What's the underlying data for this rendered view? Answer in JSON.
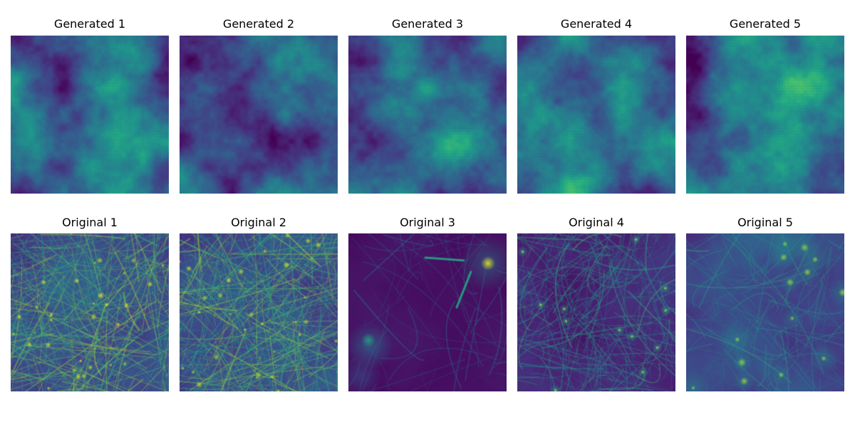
{
  "rows": [
    {
      "panels": [
        {
          "title": "Generated 1",
          "style": "generated",
          "seed": 11,
          "tint": "#2a7f8e"
        },
        {
          "title": "Generated 2",
          "style": "generated",
          "seed": 22,
          "tint": "#2a7f8e"
        },
        {
          "title": "Generated 3",
          "style": "generated",
          "seed": 33,
          "tint": "#2a7f8e"
        },
        {
          "title": "Generated 4",
          "style": "generated",
          "seed": 44,
          "tint": "#2f5f8c"
        },
        {
          "title": "Generated 5",
          "style": "generated",
          "seed": 55,
          "tint": "#2f5f8c"
        }
      ]
    },
    {
      "panels": [
        {
          "title": "Original 1",
          "style": "filaments-dense",
          "seed": 101,
          "tint": "#3a4f8c"
        },
        {
          "title": "Original 2",
          "style": "filaments-dense",
          "seed": 202,
          "tint": "#3a4f8c"
        },
        {
          "title": "Original 3",
          "style": "sparse-dark",
          "seed": 303,
          "tint": "#440154"
        },
        {
          "title": "Original 4",
          "style": "filaments-curved",
          "seed": 404,
          "tint": "#3b2a6e"
        },
        {
          "title": "Original 5",
          "style": "puncta",
          "seed": 505,
          "tint": "#3b3f86"
        }
      ]
    }
  ],
  "colormap": "viridis"
}
